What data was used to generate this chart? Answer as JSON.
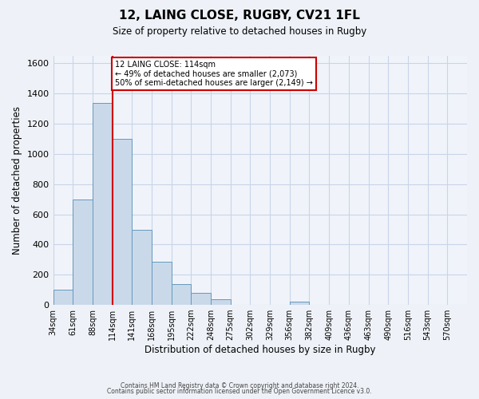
{
  "title": "12, LAING CLOSE, RUGBY, CV21 1FL",
  "subtitle": "Size of property relative to detached houses in Rugby",
  "xlabel": "Distribution of detached houses by size in Rugby",
  "ylabel": "Number of detached properties",
  "footer_lines": [
    "Contains HM Land Registry data © Crown copyright and database right 2024.",
    "Contains public sector information licensed under the Open Government Licence v3.0."
  ],
  "bin_labels": [
    "34sqm",
    "61sqm",
    "88sqm",
    "114sqm",
    "141sqm",
    "168sqm",
    "195sqm",
    "222sqm",
    "248sqm",
    "275sqm",
    "302sqm",
    "329sqm",
    "356sqm",
    "382sqm",
    "409sqm",
    "436sqm",
    "463sqm",
    "490sqm",
    "516sqm",
    "543sqm",
    "570sqm"
  ],
  "bar_values": [
    100,
    700,
    1340,
    1100,
    500,
    285,
    140,
    80,
    35,
    0,
    0,
    0,
    20,
    0,
    0,
    0,
    0,
    0,
    0,
    0,
    0
  ],
  "bar_color": "#c9d9ea",
  "bar_edge_color": "#6699bb",
  "vline_x_idx": 3,
  "vline_color": "#cc0000",
  "ylim": [
    0,
    1650
  ],
  "yticks": [
    0,
    200,
    400,
    600,
    800,
    1000,
    1200,
    1400,
    1600
  ],
  "annotation_line1": "12 LAING CLOSE: 114sqm",
  "annotation_line2": "← 49% of detached houses are smaller (2,073)",
  "annotation_line3": "50% of semi-detached houses are larger (2,149) →",
  "annotation_box_color": "#ffffff",
  "annotation_box_edge": "#cc0000",
  "grid_color": "#c8d4e8",
  "bg_color": "#eef2f8",
  "plot_bg_color": "#f0f4fa"
}
